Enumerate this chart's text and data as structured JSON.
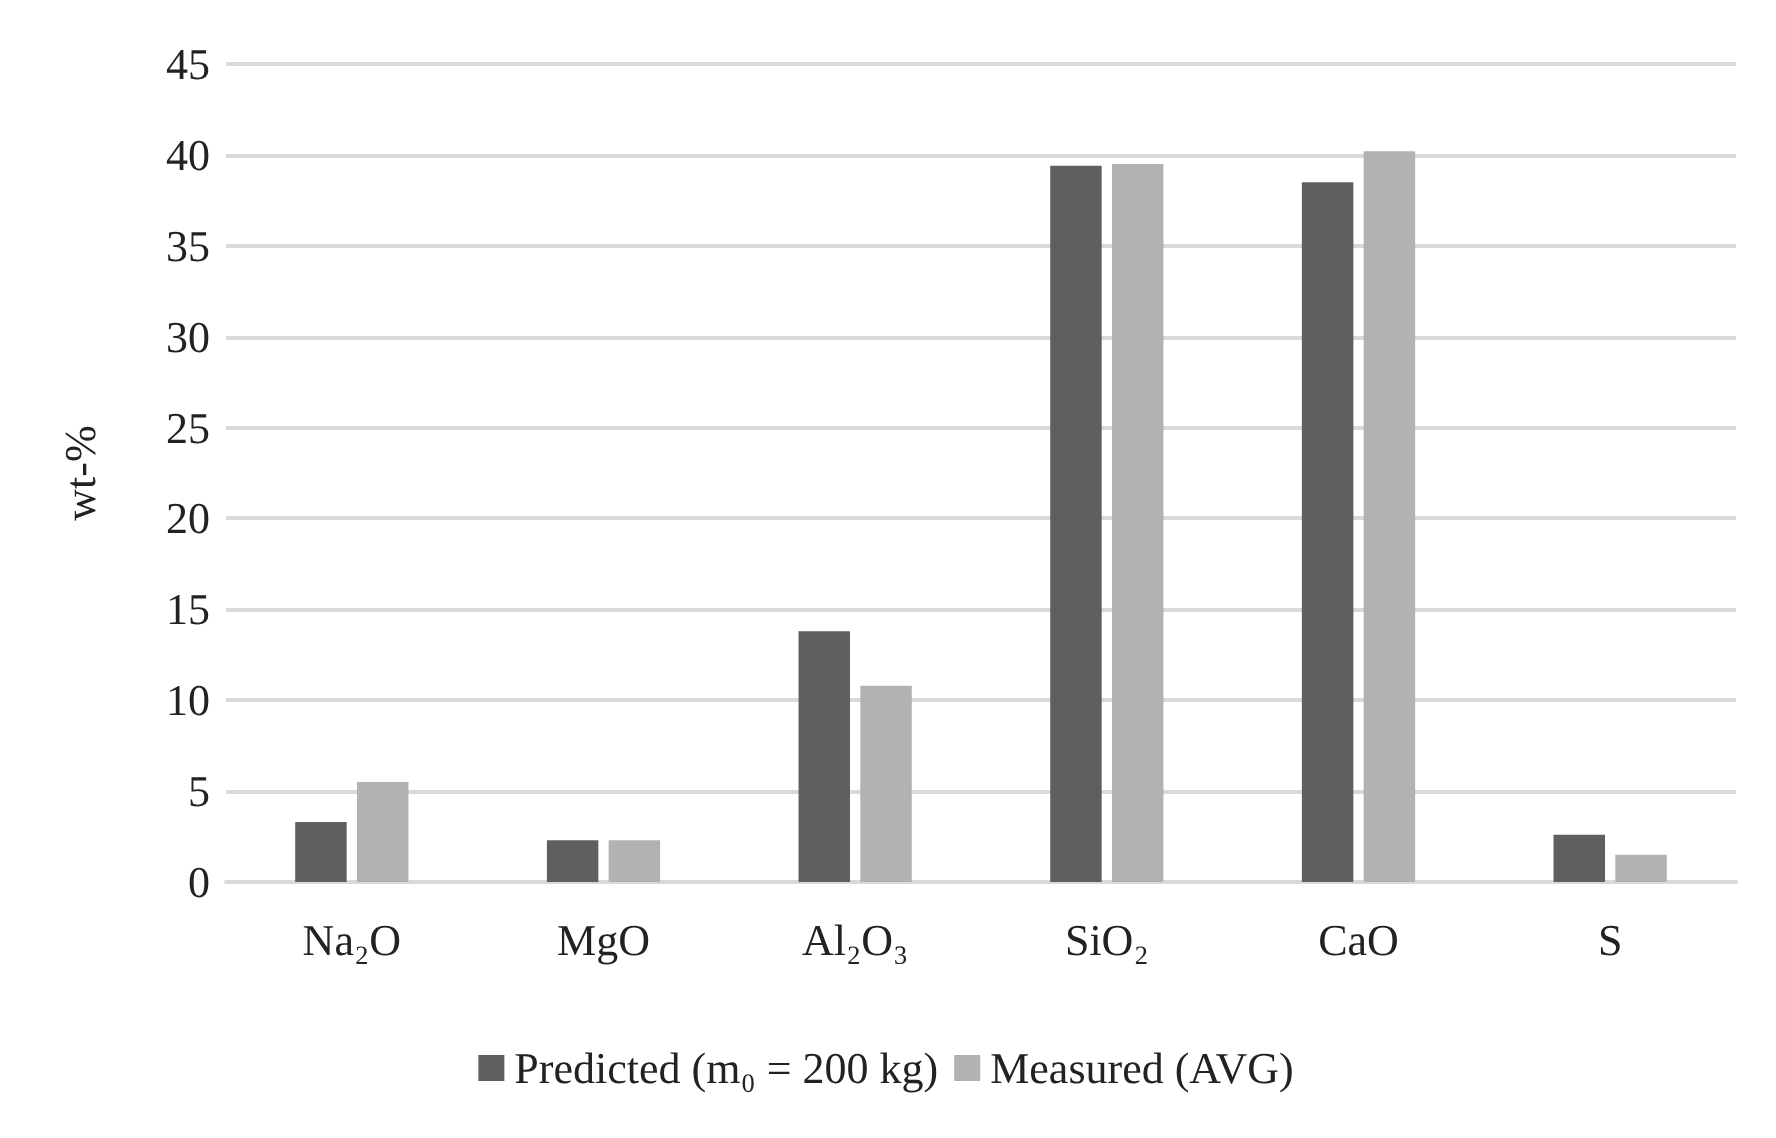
{
  "chart_data": {
    "type": "bar",
    "ylabel": "wt-%",
    "categories": [
      "Na₂O",
      "MgO",
      "Al₂O₃",
      "SiO₂",
      "CaO",
      "S"
    ],
    "series": [
      {
        "name": "Predicted (m₀ = 200 kg)",
        "color": "#5f5f5f",
        "values": [
          3.3,
          2.3,
          13.8,
          39.4,
          38.5,
          2.6
        ]
      },
      {
        "name": "Measured (AVG)",
        "color": "#b2b2b2",
        "values": [
          5.5,
          2.3,
          10.8,
          39.5,
          40.2,
          1.5
        ]
      }
    ],
    "ylim": [
      0,
      45
    ],
    "yticks": [
      0,
      5,
      10,
      15,
      20,
      25,
      30,
      35,
      40,
      45
    ],
    "grid": "y",
    "legend": "bottom"
  }
}
